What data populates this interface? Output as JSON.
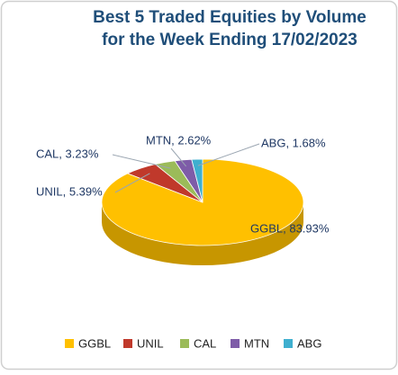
{
  "chart_data": {
    "type": "pie3d",
    "title": [
      "Best 5 Traded Equities by Volume",
      "for the Week Ending 17/02/2023"
    ],
    "categories": [
      "GGBL",
      "UNIL",
      "CAL",
      "MTN",
      "ABG"
    ],
    "values": [
      83.93,
      5.39,
      3.23,
      2.62,
      1.68
    ],
    "value_labels": [
      "GGBL, 83.93%",
      "UNIL, 5.39%",
      "CAL, 3.23%",
      "MTN, 2.62%",
      "ABG, 1.68%"
    ],
    "colors": [
      "#FFC000",
      "#C0392B",
      "#9BBB59",
      "#7E5CA8",
      "#3FAFCF"
    ],
    "legend": "bottom"
  }
}
